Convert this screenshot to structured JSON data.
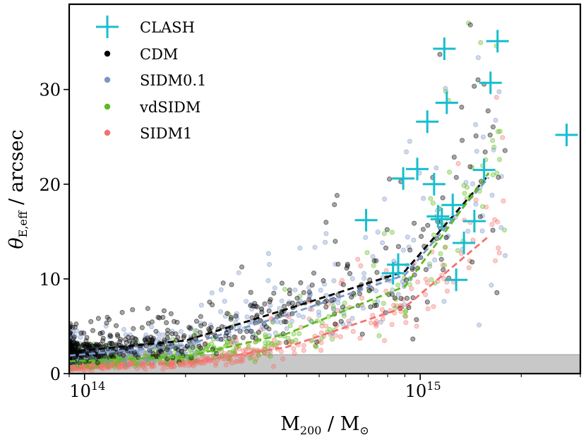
{
  "chart_data": {
    "type": "scatter",
    "x_scale": "log",
    "xlim": [
      90000000000000,
      3000000000000000
    ],
    "ylim": [
      0,
      39
    ],
    "xlabel": {
      "main": "M",
      "sub": "200",
      "sep": " / ",
      "main2": "M",
      "sub2": "⊙"
    },
    "ylabel": {
      "main": "θ",
      "sub": "E,eff",
      "rest": " / arcsec"
    },
    "x_ticks": [
      {
        "value": 100000000000000,
        "base": "10",
        "exp": "14"
      },
      {
        "value": 1000000000000000,
        "base": "10",
        "exp": "15"
      }
    ],
    "y_ticks": [
      {
        "value": 0,
        "label": "0"
      },
      {
        "value": 10,
        "label": "10"
      },
      {
        "value": 20,
        "label": "20"
      },
      {
        "value": 30,
        "label": "30"
      }
    ],
    "shaded_band": {
      "y0": 0,
      "y1": 2,
      "color": "#c8c8c8"
    },
    "legend_position": "top-left",
    "series": [
      {
        "name": "CLASH",
        "marker": "plus",
        "color": "#17becf",
        "points": [
          [
            690000000000000,
            16.2
          ],
          [
            830000000000000,
            10.6
          ],
          [
            860000000000000,
            11.5
          ],
          [
            890000000000000,
            20.6
          ],
          [
            980000000000000,
            21.6
          ],
          [
            1050000000000000,
            26.6
          ],
          [
            1100000000000000,
            20.0
          ],
          [
            1130000000000000,
            16.6
          ],
          [
            1160000000000000,
            16.3
          ],
          [
            1180000000000000,
            34.3
          ],
          [
            1200000000000000,
            28.6
          ],
          [
            1250000000000000,
            17.8
          ],
          [
            1280000000000000,
            9.9
          ],
          [
            1350000000000000,
            13.8
          ],
          [
            1450000000000000,
            16.1
          ],
          [
            1550000000000000,
            21.5
          ],
          [
            1620000000000000,
            30.7
          ],
          [
            1700000000000000,
            35.1
          ],
          [
            2730000000000000,
            25.2
          ]
        ]
      },
      {
        "name": "CDM",
        "marker": "dot",
        "color": "#000000",
        "median": [
          [
            90000000000000,
            2.3
          ],
          [
            200000000000000,
            3.5
          ],
          [
            400000000000000,
            6.8
          ],
          [
            900000000000000,
            10.8
          ],
          [
            1600000000000000,
            21.0
          ]
        ]
      },
      {
        "name": "SIDM0.1",
        "marker": "dot",
        "color": "#7b96c8",
        "median": [
          [
            90000000000000,
            1.9
          ],
          [
            200000000000000,
            3.0
          ],
          [
            400000000000000,
            6.2
          ],
          [
            900000000000000,
            10.4
          ],
          [
            1600000000000000,
            20.7
          ]
        ]
      },
      {
        "name": "vdSIDM",
        "marker": "dot",
        "color": "#5cbc1b",
        "median": [
          [
            90000000000000,
            1.3
          ],
          [
            200000000000000,
            1.8
          ],
          [
            400000000000000,
            4.2
          ],
          [
            900000000000000,
            9.2
          ],
          [
            1600000000000000,
            21.2
          ]
        ]
      },
      {
        "name": "SIDM1",
        "marker": "dot",
        "color": "#f4726e",
        "median": [
          [
            90000000000000,
            0.8
          ],
          [
            200000000000000,
            1.1
          ],
          [
            400000000000000,
            2.8
          ],
          [
            900000000000000,
            7.0
          ],
          [
            1600000000000000,
            14.5
          ]
        ]
      }
    ]
  }
}
